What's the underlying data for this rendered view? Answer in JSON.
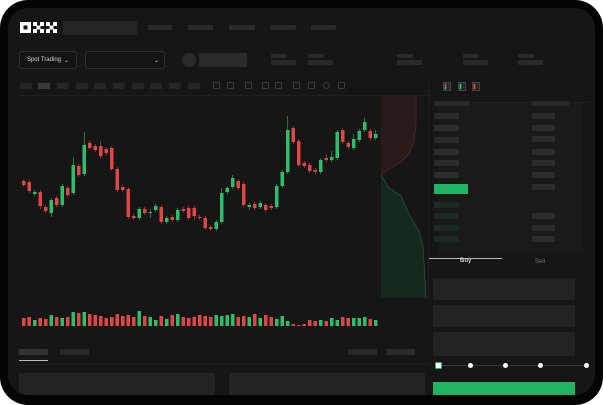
{
  "header": {
    "logo_text": "OKX"
  },
  "market_selector": {
    "label": "Spot Trading",
    "chevron": "chevron-down-icon"
  },
  "pair_selector": {
    "chevron": "chevron-down-icon"
  },
  "order_form": {
    "tabs": [
      {
        "label": "Buy",
        "active": true
      },
      {
        "label": "Sell",
        "active": false
      }
    ],
    "leverage_slider_value": 0,
    "submit_color": "#21b462"
  },
  "colors": {
    "up": "#2ebd6b",
    "down": "#e04646",
    "accent": "#21b462",
    "background": "#161616"
  },
  "chart_data": {
    "type": "candlestick",
    "candles": [
      [
        119,
        121,
        113,
        115
      ],
      [
        118,
        120,
        107,
        109
      ],
      [
        106,
        110,
        104,
        108
      ],
      [
        108,
        110,
        91,
        94
      ],
      [
        93,
        95,
        87,
        89
      ],
      [
        87,
        102,
        83,
        100
      ],
      [
        102,
        104,
        93,
        95
      ],
      [
        95,
        116,
        93,
        114
      ],
      [
        112,
        114,
        103,
        105
      ],
      [
        107,
        143,
        105,
        135
      ],
      [
        134,
        136,
        123,
        125
      ],
      [
        126,
        168,
        124,
        155
      ],
      [
        157,
        159,
        150,
        152
      ],
      [
        154,
        156,
        148,
        150
      ],
      [
        154,
        159,
        142,
        144
      ],
      [
        151,
        153,
        145,
        147
      ],
      [
        152,
        154,
        129,
        131
      ],
      [
        131,
        133,
        108,
        110
      ],
      [
        113,
        115,
        108,
        110
      ],
      [
        111,
        113,
        81,
        83
      ],
      [
        84,
        86,
        80,
        82
      ],
      [
        82,
        93,
        80,
        91
      ],
      [
        91,
        93,
        85,
        87
      ],
      [
        87,
        91,
        82,
        88
      ],
      [
        90,
        96,
        88,
        94
      ],
      [
        93,
        95,
        76,
        78
      ],
      [
        78,
        84,
        76,
        82
      ],
      [
        83,
        85,
        78,
        80
      ],
      [
        80,
        92,
        78,
        90
      ],
      [
        91,
        93,
        87,
        89
      ],
      [
        92,
        94,
        80,
        82
      ],
      [
        92,
        94,
        80,
        84
      ],
      [
        83,
        85,
        80,
        82
      ],
      [
        82,
        84,
        70,
        72
      ],
      [
        73,
        75,
        69,
        71
      ],
      [
        71,
        80,
        69,
        78
      ],
      [
        78,
        112,
        76,
        107
      ],
      [
        108,
        114,
        106,
        112
      ],
      [
        113,
        125,
        111,
        122
      ],
      [
        119,
        121,
        110,
        112
      ],
      [
        116,
        118,
        93,
        95
      ],
      [
        93,
        97,
        90,
        95
      ],
      [
        96,
        98,
        90,
        92
      ],
      [
        93,
        99,
        91,
        97
      ],
      [
        95,
        97,
        88,
        90
      ],
      [
        94,
        96,
        90,
        92
      ],
      [
        93,
        116,
        91,
        114
      ],
      [
        114,
        130,
        112,
        128
      ],
      [
        128,
        184,
        126,
        170
      ],
      [
        172,
        174,
        156,
        158
      ],
      [
        159,
        161,
        133,
        135
      ],
      [
        137,
        139,
        132,
        134
      ],
      [
        135,
        137,
        127,
        129
      ],
      [
        130,
        132,
        126,
        128
      ],
      [
        128,
        142,
        126,
        140
      ],
      [
        142,
        146,
        138,
        140
      ],
      [
        140,
        149,
        138,
        143
      ],
      [
        142,
        170,
        140,
        168
      ],
      [
        170,
        172,
        156,
        158
      ],
      [
        157,
        159,
        151,
        153
      ],
      [
        152,
        166,
        150,
        161
      ],
      [
        160,
        171,
        158,
        169
      ],
      [
        170,
        182,
        168,
        178
      ],
      [
        169,
        171,
        159,
        162
      ],
      [
        162,
        170,
        160,
        166
      ]
    ],
    "volume": [
      8,
      9,
      6,
      8,
      7,
      11,
      9,
      8,
      9,
      14,
      13,
      14,
      12,
      11,
      10,
      8,
      9,
      12,
      10,
      11,
      9,
      15,
      10,
      9,
      6,
      10,
      7,
      11,
      12,
      9,
      8,
      9,
      11,
      10,
      9,
      11,
      10,
      11,
      12,
      9,
      10,
      9,
      12,
      8,
      11,
      9,
      7,
      10,
      5,
      2,
      1,
      2,
      6,
      5,
      6,
      5,
      8,
      6,
      9,
      8,
      8,
      8,
      9,
      7,
      6
    ],
    "ohlc_order": [
      "open",
      "high",
      "low",
      "close"
    ]
  }
}
